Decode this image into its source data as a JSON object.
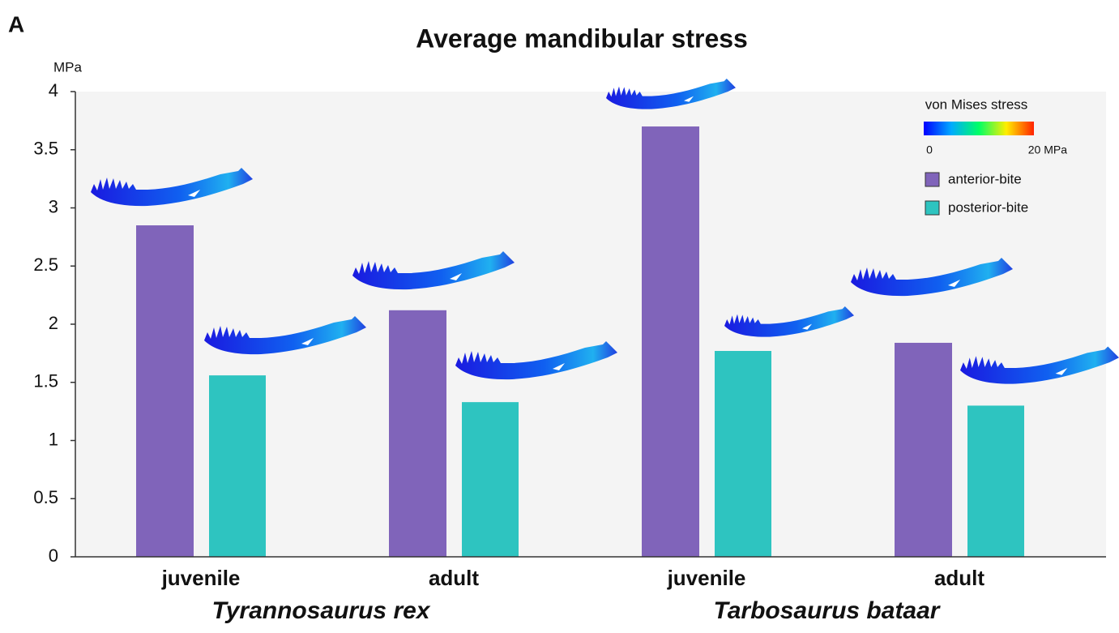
{
  "chart_data": {
    "type": "bar",
    "panel_label": "A",
    "title": "Average mandibular stress",
    "ylabel": "MPa",
    "categories": [
      "juvenile",
      "adult",
      "juvenile",
      "adult"
    ],
    "group_labels": [
      "Tyrannosaurus rex",
      "Tarbosaurus bataar"
    ],
    "series": [
      {
        "name": "anterior-bite",
        "color": "#8064ba",
        "values": [
          2.85,
          2.12,
          3.7,
          1.84
        ]
      },
      {
        "name": "posterior-bite",
        "color": "#2ec4c0",
        "values": [
          1.56,
          1.33,
          1.77,
          1.3
        ]
      }
    ],
    "ylim": [
      0,
      4
    ],
    "yticks": [
      0,
      0.5,
      1,
      1.5,
      2,
      2.5,
      3,
      3.5,
      4
    ],
    "colorbar": {
      "title": "von Mises stress",
      "ticks": [
        0,
        {
          "value": 20,
          "label": "20 MPa"
        }
      ]
    }
  }
}
